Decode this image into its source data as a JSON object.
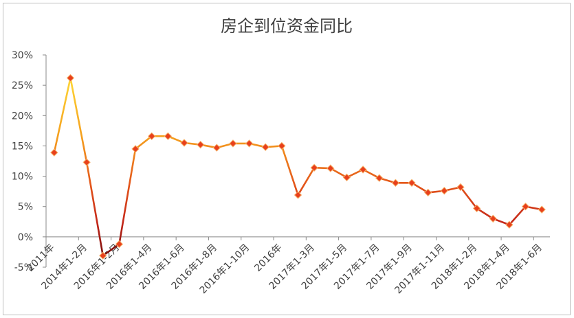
{
  "chart_data": {
    "type": "line",
    "title": "房企到位资金同比",
    "xlabel": "",
    "ylabel": "",
    "ylim": [
      -5,
      30
    ],
    "yticks": [
      "-5%",
      "0%",
      "5%",
      "10%",
      "15%",
      "20%",
      "25%",
      "30%"
    ],
    "grid": false,
    "legend": "none",
    "colors": {
      "line_start": "#f5c518",
      "line_mid": "#f08a1c",
      "line_low": "#7a0c0c",
      "line_end": "#c0392b",
      "marker": "#e8401c",
      "marker_edge": "#f6b26b"
    },
    "x_labels": [
      {
        "index": 0,
        "label": "2011年"
      },
      {
        "index": 2,
        "label": "2014年1-2月"
      },
      {
        "index": 4,
        "label": "2016年1-2月"
      },
      {
        "index": 6,
        "label": "2016年1-4月"
      },
      {
        "index": 8,
        "label": "2016年1-6月"
      },
      {
        "index": 10,
        "label": "2016年1-8月"
      },
      {
        "index": 12,
        "label": "2016年1-10月"
      },
      {
        "index": 14,
        "label": "2016年"
      },
      {
        "index": 16,
        "label": "2017年1-3月"
      },
      {
        "index": 18,
        "label": "2017年1-5月"
      },
      {
        "index": 20,
        "label": "2017年1-7月"
      },
      {
        "index": 22,
        "label": "2017年1-9月"
      },
      {
        "index": 24,
        "label": "2017年1-11月"
      },
      {
        "index": 26,
        "label": "2018年1-2月"
      },
      {
        "index": 28,
        "label": "2018年1-4月"
      },
      {
        "index": 30,
        "label": "2018年1-6月"
      }
    ],
    "series": [
      {
        "values": [
          13.9,
          26.2,
          12.3,
          -3.1,
          -1.2,
          14.5,
          16.6,
          16.6,
          15.5,
          15.2,
          14.7,
          15.4,
          15.4,
          14.8,
          15.0,
          6.9,
          11.4,
          11.3,
          9.8,
          11.1,
          9.7,
          8.9,
          8.9,
          7.3,
          7.6,
          8.2,
          4.7,
          3.0,
          2.0,
          5.0,
          4.5
        ]
      }
    ]
  }
}
